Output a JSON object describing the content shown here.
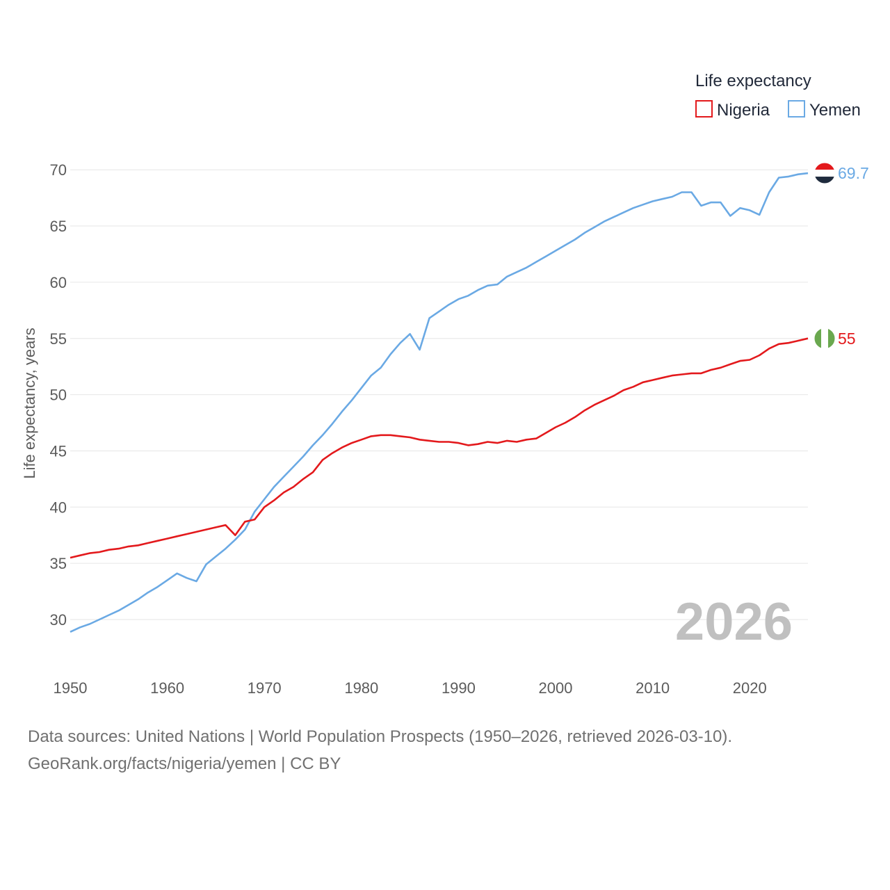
{
  "chart_data": {
    "type": "line",
    "legend_title": "Life expectancy",
    "ylabel": "Life expectancy, years",
    "xlabel": "",
    "xlim": [
      1950,
      2026
    ],
    "ylim": [
      27,
      72
    ],
    "x_ticks": [
      1950,
      1960,
      1970,
      1980,
      1990,
      2000,
      2010,
      2020
    ],
    "y_ticks": [
      30,
      35,
      40,
      45,
      50,
      55,
      60,
      65,
      70
    ],
    "year_label": "2026",
    "legend_placement": "top-right",
    "series": [
      {
        "name": "Nigeria",
        "color": "#e3191c",
        "end_label": "55",
        "flag": "nigeria-flag",
        "x": [
          1950,
          1951,
          1952,
          1953,
          1954,
          1955,
          1956,
          1957,
          1958,
          1959,
          1960,
          1961,
          1962,
          1963,
          1964,
          1965,
          1966,
          1967,
          1968,
          1969,
          1970,
          1971,
          1972,
          1973,
          1974,
          1975,
          1976,
          1977,
          1978,
          1979,
          1980,
          1981,
          1982,
          1983,
          1984,
          1985,
          1986,
          1987,
          1988,
          1989,
          1990,
          1991,
          1992,
          1993,
          1994,
          1995,
          1996,
          1997,
          1998,
          1999,
          2000,
          2001,
          2002,
          2003,
          2004,
          2005,
          2006,
          2007,
          2008,
          2009,
          2010,
          2011,
          2012,
          2013,
          2014,
          2015,
          2016,
          2017,
          2018,
          2019,
          2020,
          2021,
          2022,
          2023,
          2024,
          2025,
          2026
        ],
        "values": [
          35.5,
          35.7,
          35.9,
          36.0,
          36.2,
          36.3,
          36.5,
          36.6,
          36.8,
          37.0,
          37.2,
          37.4,
          37.6,
          37.8,
          38.0,
          38.2,
          38.4,
          37.5,
          38.7,
          38.9,
          40.0,
          40.6,
          41.3,
          41.8,
          42.5,
          43.1,
          44.2,
          44.8,
          45.3,
          45.7,
          46.0,
          46.3,
          46.4,
          46.4,
          46.3,
          46.2,
          46.0,
          45.9,
          45.8,
          45.8,
          45.7,
          45.5,
          45.6,
          45.8,
          45.7,
          45.9,
          45.8,
          46.0,
          46.1,
          46.6,
          47.1,
          47.5,
          48.0,
          48.6,
          49.1,
          49.5,
          49.9,
          50.4,
          50.7,
          51.1,
          51.3,
          51.5,
          51.7,
          51.8,
          51.9,
          51.9,
          52.2,
          52.4,
          52.7,
          53.0,
          53.1,
          53.5,
          54.1,
          54.5,
          54.6,
          54.8,
          55.0
        ]
      },
      {
        "name": "Yemen",
        "color": "#6aa9e4",
        "end_label": "69.7",
        "flag": "yemen-flag",
        "x": [
          1950,
          1951,
          1952,
          1953,
          1954,
          1955,
          1956,
          1957,
          1958,
          1959,
          1960,
          1961,
          1962,
          1963,
          1964,
          1965,
          1966,
          1967,
          1968,
          1969,
          1970,
          1971,
          1972,
          1973,
          1974,
          1975,
          1976,
          1977,
          1978,
          1979,
          1980,
          1981,
          1982,
          1983,
          1984,
          1985,
          1986,
          1987,
          1988,
          1989,
          1990,
          1991,
          1992,
          1993,
          1994,
          1995,
          1996,
          1997,
          1998,
          1999,
          2000,
          2001,
          2002,
          2003,
          2004,
          2005,
          2006,
          2007,
          2008,
          2009,
          2010,
          2011,
          2012,
          2013,
          2014,
          2015,
          2016,
          2017,
          2018,
          2019,
          2020,
          2021,
          2022,
          2023,
          2024,
          2025,
          2026
        ],
        "values": [
          28.9,
          29.3,
          29.6,
          30.0,
          30.4,
          30.8,
          31.3,
          31.8,
          32.4,
          32.9,
          33.5,
          34.1,
          33.7,
          33.4,
          34.9,
          35.6,
          36.3,
          37.1,
          38.0,
          39.6,
          40.7,
          41.8,
          42.7,
          43.6,
          44.5,
          45.5,
          46.4,
          47.4,
          48.5,
          49.5,
          50.6,
          51.7,
          52.4,
          53.6,
          54.6,
          55.4,
          54.0,
          56.8,
          57.4,
          58.0,
          58.5,
          58.8,
          59.3,
          59.7,
          59.8,
          60.5,
          60.9,
          61.3,
          61.8,
          62.3,
          62.8,
          63.3,
          63.8,
          64.4,
          64.9,
          65.4,
          65.8,
          66.2,
          66.6,
          66.9,
          67.2,
          67.4,
          67.6,
          68.0,
          68.0,
          66.8,
          67.1,
          67.1,
          65.9,
          66.6,
          66.4,
          66.0,
          68.0,
          69.3,
          69.4,
          69.6,
          69.7
        ]
      }
    ]
  },
  "footer": {
    "source_line": "Data sources: United Nations | World Population Prospects (1950–2026, retrieved 2026-03-10).",
    "credit_line": "GeoRank.org/facts/nigeria/yemen | CC BY"
  }
}
